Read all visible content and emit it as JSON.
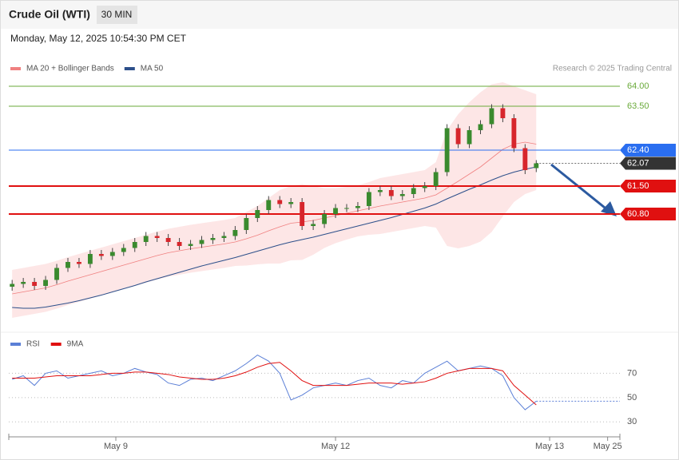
{
  "chart_data": {
    "type": "candlestick",
    "title": "Crude Oil (WTI)",
    "timeframe": "30 MIN",
    "subtitle": "Monday, May 12, 2025 10:54:30 PM CET",
    "credit": "Research © 2025 Trading Central",
    "legend": [
      {
        "name": "MA 20 + Bollinger Bands",
        "color": "#f08080"
      },
      {
        "name": "MA 50",
        "color": "#2c4f8a"
      }
    ],
    "open": [
      58.98,
      59.05,
      59.1,
      59.0,
      59.15,
      59.45,
      59.6,
      59.55,
      59.8,
      59.75,
      59.85,
      59.95,
      60.1,
      60.25,
      60.2,
      60.1,
      60.0,
      60.05,
      60.15,
      60.2,
      60.25,
      60.4,
      60.7,
      60.9,
      61.15,
      61.05,
      61.1,
      60.5,
      60.55,
      60.8,
      60.95,
      60.95,
      61.0,
      61.35,
      61.4,
      61.25,
      61.3,
      61.45,
      61.5,
      61.85,
      62.95,
      62.55,
      62.9,
      63.05,
      63.45,
      63.2,
      62.45,
      61.95
    ],
    "high": [
      59.15,
      59.2,
      59.2,
      59.25,
      59.55,
      59.7,
      59.7,
      59.9,
      59.9,
      59.95,
      60.05,
      60.2,
      60.35,
      60.35,
      60.3,
      60.2,
      60.15,
      60.25,
      60.3,
      60.35,
      60.5,
      60.8,
      61.0,
      61.25,
      61.25,
      61.2,
      61.2,
      60.65,
      60.9,
      61.05,
      61.05,
      61.1,
      61.45,
      61.5,
      61.5,
      61.4,
      61.55,
      61.6,
      61.95,
      63.05,
      63.05,
      63.0,
      63.15,
      63.55,
      63.55,
      63.3,
      62.55,
      62.15
    ],
    "low": [
      58.88,
      58.95,
      58.9,
      58.9,
      59.05,
      59.35,
      59.45,
      59.45,
      59.65,
      59.65,
      59.75,
      59.85,
      60.0,
      60.1,
      60.0,
      59.9,
      59.9,
      59.95,
      60.05,
      60.1,
      60.15,
      60.3,
      60.6,
      60.8,
      60.95,
      60.95,
      60.4,
      60.4,
      60.45,
      60.7,
      60.85,
      60.85,
      60.9,
      61.25,
      61.15,
      61.15,
      61.2,
      61.35,
      61.4,
      61.75,
      62.45,
      62.45,
      62.8,
      62.95,
      63.1,
      62.35,
      61.8,
      61.85
    ],
    "close": [
      59.05,
      59.1,
      59.0,
      59.15,
      59.45,
      59.6,
      59.55,
      59.8,
      59.75,
      59.85,
      59.95,
      60.1,
      60.25,
      60.2,
      60.1,
      60.0,
      60.05,
      60.15,
      60.2,
      60.25,
      60.4,
      60.7,
      60.9,
      61.15,
      61.05,
      61.1,
      60.5,
      60.55,
      60.8,
      60.95,
      60.95,
      61.0,
      61.35,
      61.4,
      61.25,
      61.3,
      61.45,
      61.5,
      61.85,
      62.95,
      62.55,
      62.9,
      63.05,
      63.45,
      63.2,
      62.45,
      61.9,
      62.07
    ],
    "ma20": [
      58.8,
      58.85,
      58.9,
      58.95,
      59.03,
      59.12,
      59.2,
      59.28,
      59.36,
      59.44,
      59.52,
      59.6,
      59.68,
      59.76,
      59.83,
      59.88,
      59.93,
      59.97,
      60.01,
      60.05,
      60.1,
      60.18,
      60.27,
      60.38,
      60.48,
      60.57,
      60.6,
      60.64,
      60.7,
      60.76,
      60.82,
      60.88,
      60.94,
      61.0,
      61.05,
      61.1,
      61.15,
      61.2,
      61.28,
      61.45,
      61.62,
      61.8,
      61.98,
      62.2,
      62.42,
      62.55,
      62.6,
      62.55
    ],
    "ma50": [
      58.46,
      58.44,
      58.44,
      58.47,
      58.52,
      58.57,
      58.63,
      58.7,
      58.77,
      58.85,
      58.93,
      59.01,
      59.1,
      59.18,
      59.26,
      59.34,
      59.42,
      59.5,
      59.57,
      59.64,
      59.71,
      59.79,
      59.87,
      59.95,
      60.03,
      60.1,
      60.16,
      60.22,
      60.29,
      60.36,
      60.43,
      60.5,
      60.57,
      60.64,
      60.71,
      60.79,
      60.87,
      60.95,
      61.05,
      61.18,
      61.3,
      61.42,
      61.53,
      61.65,
      61.76,
      61.85,
      61.92,
      61.98
    ],
    "upper": [
      59.4,
      59.45,
      59.5,
      59.55,
      59.63,
      59.72,
      59.8,
      59.88,
      59.96,
      60.04,
      60.12,
      60.2,
      60.28,
      60.36,
      60.43,
      60.48,
      60.53,
      60.57,
      60.61,
      60.65,
      60.7,
      60.85,
      61.0,
      61.2,
      61.4,
      61.5,
      61.55,
      61.5,
      61.45,
      61.45,
      61.48,
      61.52,
      61.6,
      61.7,
      61.75,
      61.8,
      61.85,
      61.9,
      62.1,
      62.9,
      63.3,
      63.6,
      63.85,
      64.05,
      64.1,
      64.0,
      63.9,
      63.8
    ],
    "lower": [
      58.2,
      58.25,
      58.3,
      58.35,
      58.43,
      58.52,
      58.6,
      58.68,
      58.76,
      58.84,
      58.92,
      59.0,
      59.08,
      59.16,
      59.23,
      59.28,
      59.33,
      59.37,
      59.41,
      59.45,
      59.5,
      59.51,
      59.54,
      59.56,
      59.56,
      59.64,
      59.65,
      59.78,
      59.95,
      60.07,
      60.16,
      60.24,
      60.28,
      60.3,
      60.35,
      60.4,
      60.45,
      60.5,
      60.46,
      60.0,
      59.94,
      60.0,
      60.11,
      60.35,
      60.74,
      61.1,
      61.3,
      61.4
    ],
    "up_color": "#3a8a2e",
    "down_color": "#d7262c",
    "band_color": "#fde0e0",
    "ylim": [
      57.92,
      64.32
    ],
    "levels": [
      {
        "value": 64,
        "label": "64.00",
        "color": "#6aaa3a",
        "boxed": false
      },
      {
        "value": 63.5,
        "label": "63.50",
        "color": "#6aaa3a",
        "boxed": false
      },
      {
        "value": 62.4,
        "label": "62.40",
        "color": "#2a6ef0",
        "boxed": true
      },
      {
        "value": 62.07,
        "label": "62.07",
        "color": "#333333",
        "boxed": true,
        "dotted": true
      },
      {
        "value": 61.5,
        "label": "61.50",
        "color": "#e01010",
        "boxed": true
      },
      {
        "value": 60.8,
        "label": "60.80",
        "color": "#e01010",
        "boxed": true
      }
    ],
    "xlim": [
      -0.3,
      54.5
    ],
    "xticks": [
      {
        "value": 9.3,
        "label": "May 9"
      },
      {
        "value": 29,
        "label": "May 12"
      },
      {
        "value": 48.2,
        "label": "May 13"
      },
      {
        "value": 53.4,
        "label": "May 25"
      }
    ],
    "rsi": {
      "series": [
        {
          "name": "RSI",
          "color": "#5b7fd6",
          "values": [
            65,
            68,
            60,
            70,
            72,
            66,
            68,
            70,
            72,
            68,
            70,
            74,
            71,
            69,
            62,
            60,
            65,
            66,
            64,
            68,
            72,
            78,
            85,
            80,
            70,
            48,
            52,
            58,
            60,
            62,
            60,
            64,
            66,
            60,
            58,
            64,
            62,
            70,
            75,
            80,
            72,
            74,
            76,
            74,
            68,
            50,
            40,
            47
          ]
        },
        {
          "name": "9MA",
          "color": "#e01010",
          "values": [
            66,
            66,
            66,
            67,
            68,
            68,
            68,
            68,
            69,
            70,
            70,
            71,
            71,
            70,
            69,
            67,
            66,
            65,
            65,
            66,
            68,
            71,
            75,
            78,
            79,
            72,
            64,
            60,
            60,
            60,
            60,
            61,
            62,
            62,
            62,
            61,
            62,
            63,
            66,
            70,
            72,
            74,
            74,
            74,
            72,
            60,
            52,
            44
          ]
        }
      ],
      "ylim": [
        19,
        90
      ],
      "yticks": [
        30,
        50,
        70
      ]
    }
  }
}
